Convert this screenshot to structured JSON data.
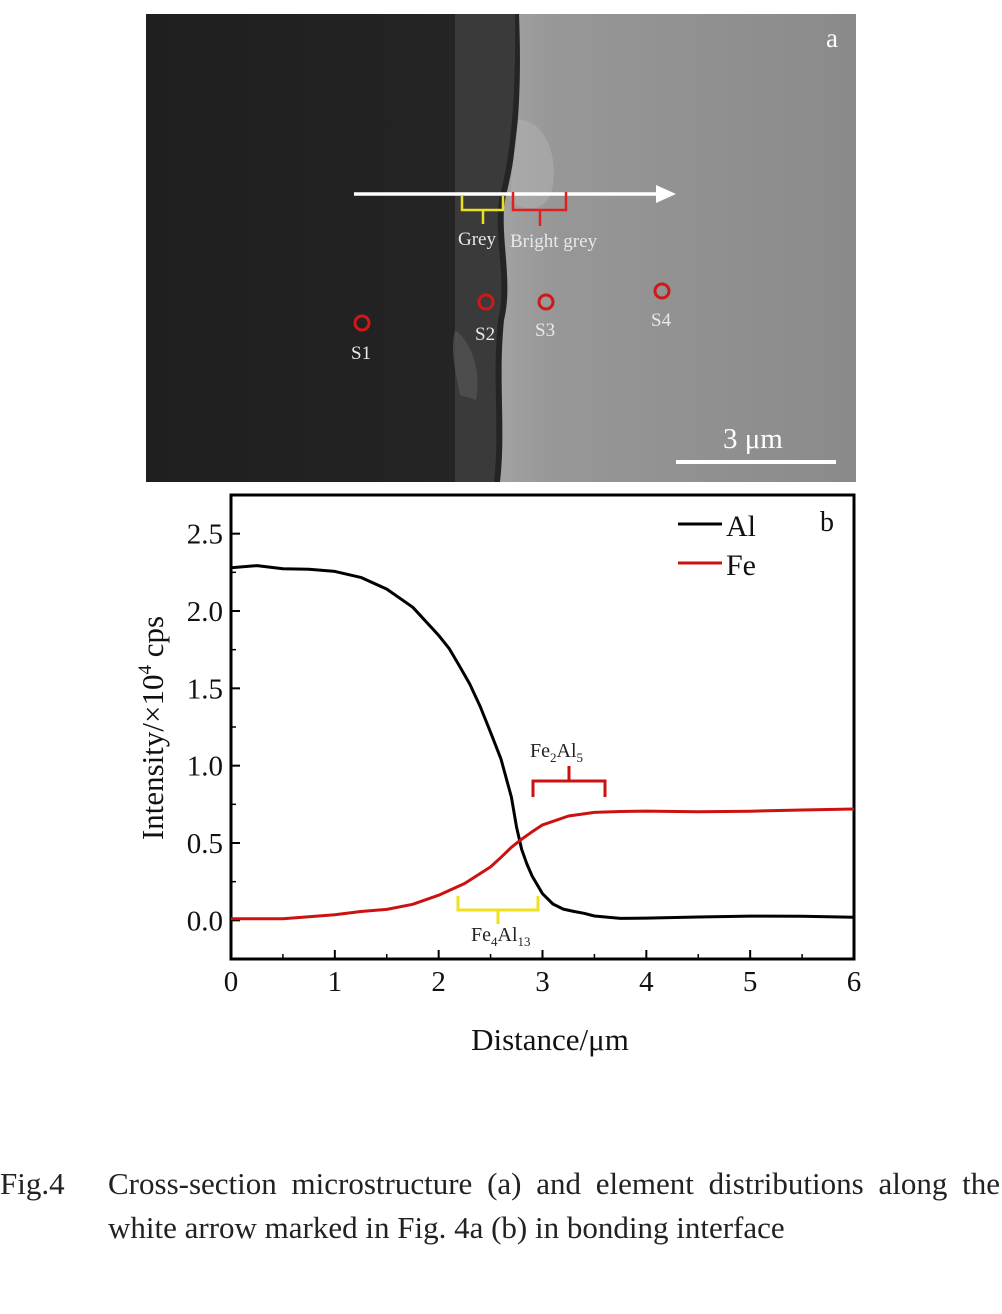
{
  "panel_a": {
    "label": "a",
    "interface_labels": {
      "grey": "Grey",
      "bright_grey": "Bright grey"
    },
    "points": [
      "S1",
      "S2",
      "S3",
      "S4"
    ],
    "scale_bar": "3 μm",
    "colors": {
      "dark_side": "#242424",
      "light_side": "#8e8e8e",
      "grey_bracket": "#e8e020",
      "bright_bracket": "#e02020",
      "markers": "#d01818"
    }
  },
  "panel_b": {
    "label": "b",
    "ylabel": "Intensity/×10",
    "ylabel_sup": "4",
    "ylabel_unit": " cps",
    "xlabel": "Distance/μm",
    "annotations": {
      "fe2al5": {
        "a": "Fe",
        "s1": "2",
        "b": "Al",
        "s2": "5"
      },
      "fe4al13": {
        "a": "Fe",
        "s1": "4",
        "b": "Al",
        "s2": "13"
      }
    }
  },
  "chart_data": {
    "type": "line",
    "xlabel": "Distance/μm",
    "ylabel": "Intensity/×10^4 cps",
    "xlim": [
      0,
      6
    ],
    "ylim": [
      -0.25,
      2.75
    ],
    "xticks": [
      "0",
      "1",
      "2",
      "3",
      "4",
      "5",
      "6"
    ],
    "yticks": [
      "0.0",
      "0.5",
      "1.0",
      "1.5",
      "2.0",
      "2.5"
    ],
    "legend_position": "top-right",
    "series": [
      {
        "name": "Al",
        "color": "#000000",
        "x": [
          0,
          0.25,
          0.5,
          0.75,
          1.0,
          1.25,
          1.5,
          1.75,
          2.0,
          2.1,
          2.2,
          2.3,
          2.4,
          2.5,
          2.6,
          2.7,
          2.75,
          2.8,
          2.85,
          2.9,
          3.0,
          3.1,
          3.2,
          3.3,
          3.4,
          3.5,
          3.75,
          4.0,
          4.5,
          5.0,
          5.5,
          6.0
        ],
        "y": [
          2.28,
          2.3,
          2.28,
          2.27,
          2.25,
          2.21,
          2.14,
          2.03,
          1.85,
          1.76,
          1.64,
          1.52,
          1.38,
          1.22,
          1.05,
          0.8,
          0.6,
          0.45,
          0.36,
          0.29,
          0.18,
          0.11,
          0.07,
          0.05,
          0.04,
          0.03,
          0.02,
          0.02,
          0.02,
          0.02,
          0.02,
          0.02
        ]
      },
      {
        "name": "Fe",
        "color": "#cc1111",
        "x": [
          0,
          0.5,
          1.0,
          1.25,
          1.5,
          1.75,
          2.0,
          2.25,
          2.5,
          2.6,
          2.7,
          2.8,
          2.9,
          3.0,
          3.25,
          3.5,
          3.75,
          4.0,
          4.5,
          5.0,
          5.5,
          6.0
        ],
        "y": [
          0.01,
          0.01,
          0.03,
          0.05,
          0.07,
          0.11,
          0.17,
          0.24,
          0.34,
          0.4,
          0.47,
          0.53,
          0.58,
          0.62,
          0.67,
          0.69,
          0.7,
          0.71,
          0.71,
          0.71,
          0.71,
          0.72
        ]
      }
    ]
  },
  "caption": {
    "label": "Fig.4",
    "text": "Cross-section microstructure (a) and element distributions along the white arrow marked in Fig. 4a (b) in bonding interface"
  }
}
